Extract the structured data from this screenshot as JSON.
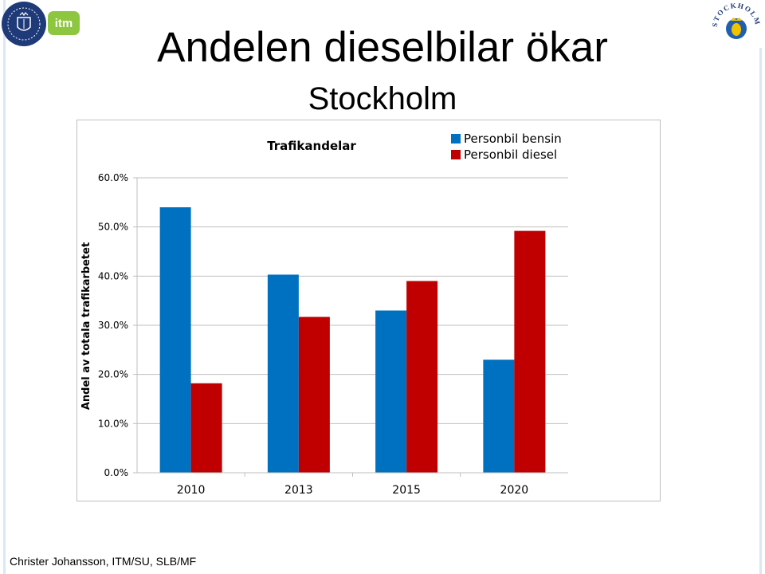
{
  "slide": {
    "title": "Andelen dieselbilar ökar",
    "subtitle": "Stockholm",
    "footer": "Christer Johansson, ITM/SU, SLB/MF"
  },
  "logos": {
    "left": "stockholm-university-seal",
    "middle": "itm",
    "middle_text": "itm",
    "right": "stockholms-stad-emblem",
    "right_text": "STOCKHOLMS STAD"
  },
  "colors": {
    "bensin": "#0070C0",
    "diesel": "#C00000",
    "axis": "#bfbfbf",
    "su_blue": "#1f3a78",
    "itm_green": "#8dc63f"
  },
  "chart_data": {
    "type": "bar",
    "title": "Trafikandelar",
    "xlabel": "",
    "ylabel": "Andel av totala trafikarbetet",
    "categories": [
      "2010",
      "2013",
      "2015",
      "2020"
    ],
    "series": [
      {
        "name": "Personbil bensin",
        "color": "#0070C0",
        "values": [
          54.0,
          40.3,
          33.0,
          23.0
        ]
      },
      {
        "name": "Personbil diesel",
        "color": "#C00000",
        "values": [
          18.2,
          31.7,
          39.0,
          49.2
        ]
      }
    ],
    "yticks": [
      "0.0%",
      "10.0%",
      "20.0%",
      "30.0%",
      "40.0%",
      "50.0%",
      "60.0%"
    ],
    "ylim": [
      0,
      60
    ],
    "grid": true,
    "legend_position": "top-right"
  }
}
